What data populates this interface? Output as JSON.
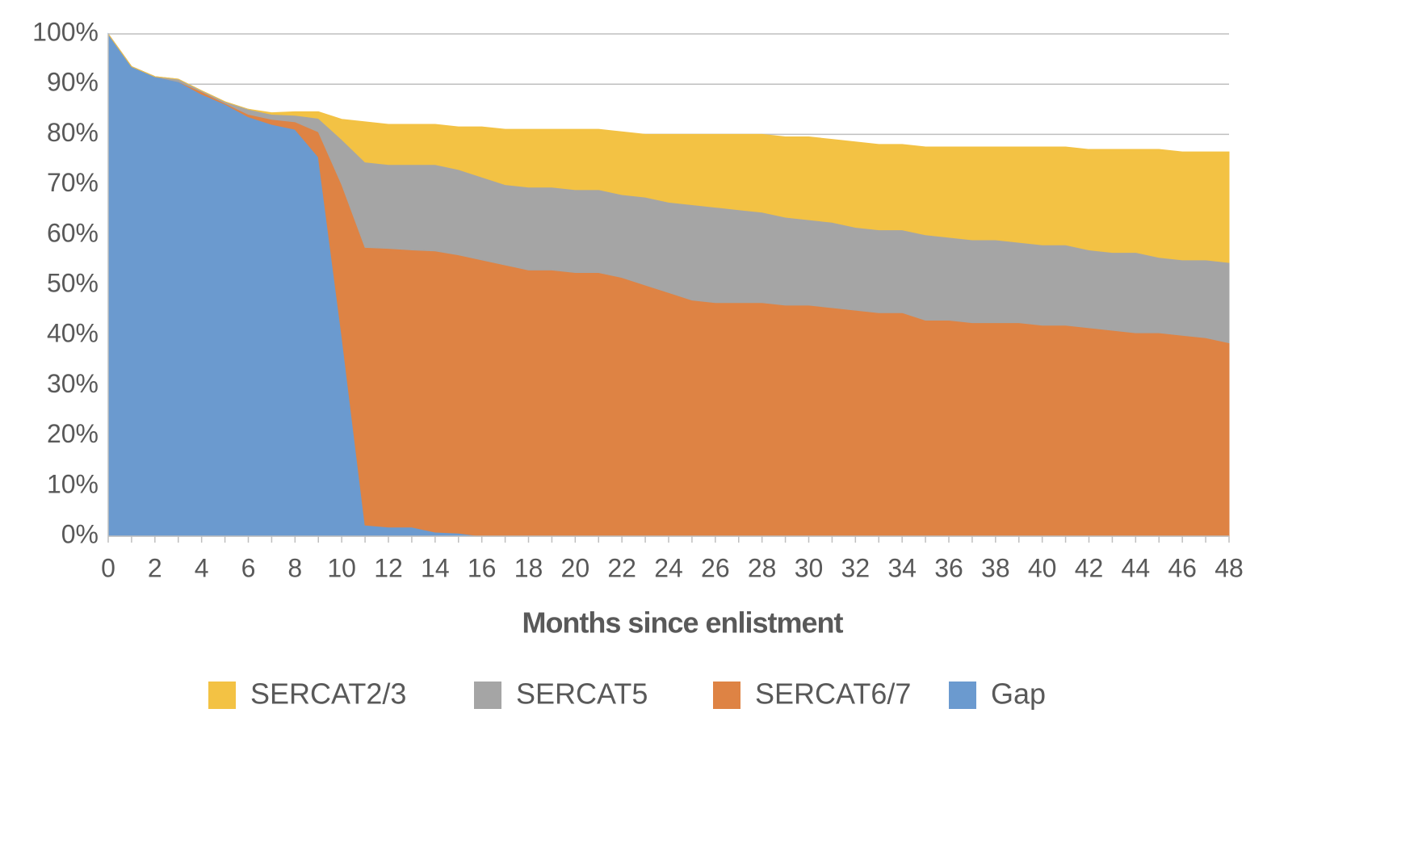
{
  "chart_data": {
    "type": "stacked_area",
    "x_label": "Months since enlistment",
    "x": [
      0,
      1,
      2,
      3,
      4,
      5,
      6,
      7,
      8,
      9,
      10,
      11,
      12,
      13,
      14,
      15,
      16,
      17,
      18,
      19,
      20,
      21,
      22,
      23,
      24,
      25,
      26,
      27,
      28,
      29,
      30,
      31,
      32,
      33,
      34,
      35,
      36,
      37,
      38,
      39,
      40,
      41,
      42,
      43,
      44,
      45,
      46,
      47,
      48
    ],
    "series": [
      {
        "name": "SERCAT2/3",
        "color": "#f3c244",
        "values": [
          0,
          0,
          0,
          0,
          0,
          0,
          0,
          0.3,
          0.7,
          1.3,
          4,
          8,
          8,
          8,
          8,
          8.5,
          10,
          11,
          11.5,
          11.5,
          12,
          12,
          12.5,
          12.5,
          13.5,
          14,
          14.5,
          15,
          15.5,
          16,
          16.5,
          16.5,
          17,
          17,
          17,
          17.5,
          18,
          18.5,
          18.5,
          19,
          19.5,
          19.5,
          20,
          20.5,
          20.5,
          21.5,
          21.5,
          21.5,
          22
        ]
      },
      {
        "name": "SERCAT5",
        "color": "#a5a5a5",
        "values": [
          0,
          0,
          0,
          0.5,
          0.2,
          0.3,
          1,
          1,
          1.3,
          2.7,
          9,
          17,
          16.7,
          17,
          17.2,
          17,
          16.5,
          16,
          16.5,
          16.5,
          16.5,
          16.5,
          16.5,
          17.5,
          18,
          19,
          19,
          18.5,
          18,
          17.5,
          17,
          17,
          16.5,
          16.5,
          16.5,
          17,
          16.5,
          16.5,
          16.5,
          16,
          16,
          16,
          15.5,
          15.5,
          16,
          15,
          15,
          15.5,
          16
        ]
      },
      {
        "name": "SERCAT6/7",
        "color": "#de8344",
        "values": [
          0,
          0,
          0,
          0,
          0.5,
          0.2,
          0.5,
          1,
          1.5,
          5,
          30,
          55.3,
          55.5,
          55.2,
          56,
          55.4,
          55,
          54,
          53,
          53,
          52.5,
          52.5,
          51.5,
          50,
          48.5,
          47,
          46.5,
          46.5,
          46.5,
          46,
          46,
          45.5,
          45,
          44.5,
          44.5,
          43,
          43,
          42.5,
          42.5,
          42.5,
          42,
          42,
          41.5,
          41,
          40.5,
          40.5,
          40,
          39.5,
          38.5
        ]
      },
      {
        "name": "Gap",
        "color": "#6b9acf",
        "values": [
          100,
          93.5,
          91.5,
          90.5,
          88,
          86,
          83.5,
          82,
          81,
          75.5,
          40,
          2.2,
          1.8,
          1.8,
          0.8,
          0.6,
          0,
          0,
          0,
          0,
          0,
          0,
          0,
          0,
          0,
          0,
          0,
          0,
          0,
          0,
          0,
          0,
          0,
          0,
          0,
          0,
          0,
          0,
          0,
          0,
          0,
          0,
          0,
          0,
          0,
          0,
          0,
          0,
          0
        ]
      }
    ],
    "xlim": [
      0,
      48
    ],
    "xticks": [
      0,
      2,
      4,
      6,
      8,
      10,
      12,
      14,
      16,
      18,
      20,
      22,
      24,
      26,
      28,
      30,
      32,
      34,
      36,
      38,
      40,
      42,
      44,
      46,
      48
    ],
    "ylim": [
      0,
      100
    ],
    "yticks": [
      {
        "value": 0,
        "label": "0%"
      },
      {
        "value": 10,
        "label": "10%"
      },
      {
        "value": 20,
        "label": "20%"
      },
      {
        "value": 30,
        "label": "30%"
      },
      {
        "value": 40,
        "label": "40%"
      },
      {
        "value": 50,
        "label": "50%"
      },
      {
        "value": 60,
        "label": "60%"
      },
      {
        "value": 70,
        "label": "70%"
      },
      {
        "value": 80,
        "label": "80%"
      },
      {
        "value": 90,
        "label": "90%"
      },
      {
        "value": 100,
        "label": "100%"
      }
    ],
    "grid": true
  }
}
